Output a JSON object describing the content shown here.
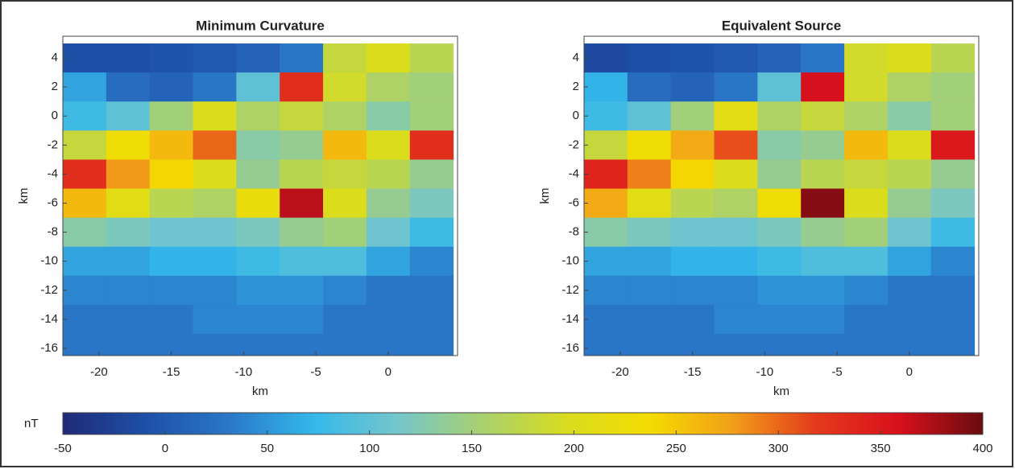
{
  "chart_data": [
    {
      "type": "heatmap",
      "title": "Minimum Curvature",
      "xlabel": "km",
      "ylabel": "km",
      "x": [
        -21,
        -18,
        -15,
        -12,
        -9,
        -6,
        -3,
        0,
        3
      ],
      "y": [
        4,
        2,
        0,
        -2,
        -4,
        -6,
        -8,
        -10,
        -12,
        -14,
        -16
      ],
      "z": [
        [
          -10,
          -10,
          -5,
          0,
          10,
          30,
          180,
          200,
          170
        ],
        [
          60,
          20,
          10,
          30,
          100,
          330,
          190,
          160,
          150
        ],
        [
          80,
          100,
          150,
          200,
          160,
          180,
          160,
          130,
          150
        ],
        [
          180,
          230,
          260,
          300,
          130,
          140,
          260,
          200,
          330
        ],
        [
          330,
          280,
          240,
          200,
          140,
          170,
          180,
          170,
          140
        ],
        [
          260,
          210,
          170,
          160,
          220,
          370,
          200,
          140,
          120
        ],
        [
          130,
          120,
          110,
          110,
          120,
          140,
          150,
          110,
          80
        ],
        [
          60,
          60,
          70,
          70,
          80,
          90,
          90,
          60,
          40
        ],
        [
          40,
          40,
          40,
          40,
          50,
          50,
          40,
          30,
          30
        ],
        [
          30,
          30,
          30,
          40,
          40,
          40,
          30,
          30,
          30
        ],
        [
          30,
          30,
          30,
          30,
          30,
          30,
          30,
          30,
          30
        ]
      ],
      "xlim": [
        -22.5,
        4.8
      ],
      "ylim": [
        -16.5,
        5.5
      ],
      "xticks": [
        -20,
        -15,
        -10,
        -5,
        0
      ],
      "yticks": [
        4,
        2,
        0,
        -2,
        -4,
        -6,
        -8,
        -10,
        -12,
        -14,
        -16
      ]
    },
    {
      "type": "heatmap",
      "title": "Equivalent Source",
      "xlabel": "km",
      "ylabel": "km",
      "x": [
        -21,
        -18,
        -15,
        -12,
        -9,
        -6,
        -3,
        0,
        3
      ],
      "y": [
        4,
        2,
        0,
        -2,
        -4,
        -6,
        -8,
        -10,
        -12,
        -14,
        -16
      ],
      "z": [
        [
          -15,
          -10,
          -5,
          0,
          10,
          30,
          190,
          200,
          170
        ],
        [
          70,
          20,
          10,
          30,
          100,
          360,
          190,
          160,
          150
        ],
        [
          80,
          100,
          150,
          210,
          160,
          180,
          160,
          130,
          150
        ],
        [
          180,
          230,
          270,
          310,
          130,
          140,
          260,
          200,
          350
        ],
        [
          340,
          290,
          240,
          200,
          140,
          170,
          180,
          170,
          140
        ],
        [
          270,
          210,
          170,
          160,
          230,
          390,
          200,
          140,
          120
        ],
        [
          130,
          120,
          110,
          110,
          120,
          140,
          150,
          110,
          80
        ],
        [
          60,
          60,
          70,
          70,
          80,
          90,
          90,
          60,
          40
        ],
        [
          40,
          40,
          40,
          40,
          50,
          50,
          40,
          30,
          30
        ],
        [
          30,
          30,
          30,
          40,
          40,
          40,
          30,
          30,
          30
        ],
        [
          30,
          30,
          30,
          30,
          30,
          30,
          30,
          30,
          30
        ]
      ],
      "xlim": [
        -22.5,
        4.8
      ],
      "ylim": [
        -16.5,
        5.5
      ],
      "xticks": [
        -20,
        -15,
        -10,
        -5,
        0
      ],
      "yticks": [
        4,
        2,
        0,
        -2,
        -4,
        -6,
        -8,
        -10,
        -12,
        -14,
        -16
      ]
    }
  ],
  "colorbar": {
    "label": "nT",
    "lim": [
      -50,
      400
    ],
    "ticks": [
      -50,
      0,
      50,
      100,
      150,
      200,
      250,
      300,
      350,
      400
    ],
    "colormap": [
      "#1f2a78",
      "#1e50a8",
      "#2a78c8",
      "#34b8ea",
      "#74c6cc",
      "#a8d070",
      "#d8dc20",
      "#f4dc00",
      "#f2a018",
      "#e43a1c",
      "#d8101c",
      "#6a0c10"
    ]
  }
}
